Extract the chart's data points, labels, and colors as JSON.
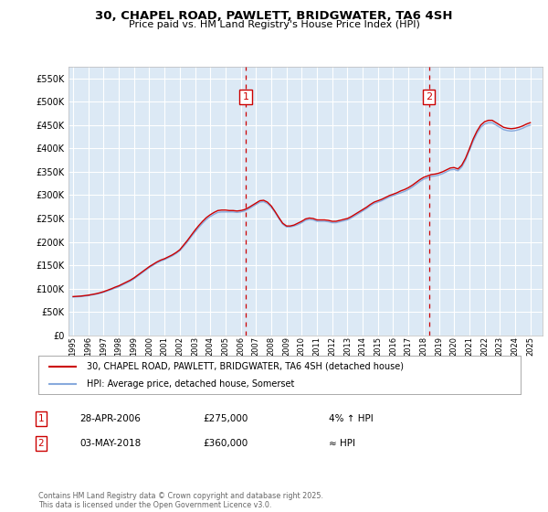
{
  "title_line1": "30, CHAPEL ROAD, PAWLETT, BRIDGWATER, TA6 4SH",
  "title_line2": "Price paid vs. HM Land Registry's House Price Index (HPI)",
  "fig_bg_color": "#ffffff",
  "plot_bg_color": "#dce9f5",
  "ylim": [
    0,
    575000
  ],
  "yticks": [
    0,
    50000,
    100000,
    150000,
    200000,
    250000,
    300000,
    350000,
    400000,
    450000,
    500000,
    550000
  ],
  "ytick_labels": [
    "£0",
    "£50K",
    "£100K",
    "£150K",
    "£200K",
    "£250K",
    "£300K",
    "£350K",
    "£400K",
    "£450K",
    "£500K",
    "£550K"
  ],
  "xmin": 1994.7,
  "xmax": 2025.8,
  "sale1_x": 2006.32,
  "sale1_y": 510000,
  "sale1_label": "1",
  "sale2_x": 2018.34,
  "sale2_y": 510000,
  "sale2_label": "2",
  "red_line_color": "#cc0000",
  "blue_line_color": "#88aadd",
  "grid_color": "#ffffff",
  "dashed_line_color": "#cc0000",
  "legend_label_red": "30, CHAPEL ROAD, PAWLETT, BRIDGWATER, TA6 4SH (detached house)",
  "legend_label_blue": "HPI: Average price, detached house, Somerset",
  "annotation1_date": "28-APR-2006",
  "annotation1_price": "£275,000",
  "annotation1_hpi": "4% ↑ HPI",
  "annotation2_date": "03-MAY-2018",
  "annotation2_price": "£360,000",
  "annotation2_hpi": "≈ HPI",
  "footer": "Contains HM Land Registry data © Crown copyright and database right 2025.\nThis data is licensed under the Open Government Licence v3.0.",
  "hpi_years": [
    1995.0,
    1995.25,
    1995.5,
    1995.75,
    1996.0,
    1996.25,
    1996.5,
    1996.75,
    1997.0,
    1997.25,
    1997.5,
    1997.75,
    1998.0,
    1998.25,
    1998.5,
    1998.75,
    1999.0,
    1999.25,
    1999.5,
    1999.75,
    2000.0,
    2000.25,
    2000.5,
    2000.75,
    2001.0,
    2001.25,
    2001.5,
    2001.75,
    2002.0,
    2002.25,
    2002.5,
    2002.75,
    2003.0,
    2003.25,
    2003.5,
    2003.75,
    2004.0,
    2004.25,
    2004.5,
    2004.75,
    2005.0,
    2005.25,
    2005.5,
    2005.75,
    2006.0,
    2006.25,
    2006.5,
    2006.75,
    2007.0,
    2007.25,
    2007.5,
    2007.75,
    2008.0,
    2008.25,
    2008.5,
    2008.75,
    2009.0,
    2009.25,
    2009.5,
    2009.75,
    2010.0,
    2010.25,
    2010.5,
    2010.75,
    2011.0,
    2011.25,
    2011.5,
    2011.75,
    2012.0,
    2012.25,
    2012.5,
    2012.75,
    2013.0,
    2013.25,
    2013.5,
    2013.75,
    2014.0,
    2014.25,
    2014.5,
    2014.75,
    2015.0,
    2015.25,
    2015.5,
    2015.75,
    2016.0,
    2016.25,
    2016.5,
    2016.75,
    2017.0,
    2017.25,
    2017.5,
    2017.75,
    2018.0,
    2018.25,
    2018.5,
    2018.75,
    2019.0,
    2019.25,
    2019.5,
    2019.75,
    2020.0,
    2020.25,
    2020.5,
    2020.75,
    2021.0,
    2021.25,
    2021.5,
    2021.75,
    2022.0,
    2022.25,
    2022.5,
    2022.75,
    2023.0,
    2023.25,
    2023.5,
    2023.75,
    2024.0,
    2024.25,
    2024.5,
    2024.75,
    2025.0
  ],
  "hpi_values": [
    82000,
    82500,
    83000,
    84000,
    85000,
    86500,
    88000,
    90000,
    92000,
    95000,
    98000,
    101000,
    104000,
    108000,
    112000,
    116000,
    121000,
    127000,
    133000,
    139000,
    145000,
    150000,
    155000,
    159000,
    162000,
    166000,
    170000,
    175000,
    181000,
    190000,
    200000,
    211000,
    221000,
    231000,
    240000,
    248000,
    254000,
    259000,
    263000,
    264000,
    264000,
    264000,
    264000,
    263000,
    264000,
    266000,
    270000,
    275000,
    280000,
    285000,
    286000,
    282000,
    274000,
    263000,
    250000,
    238000,
    232000,
    232000,
    234000,
    237000,
    241000,
    246000,
    248000,
    247000,
    244000,
    244000,
    244000,
    243000,
    241000,
    241000,
    243000,
    245000,
    247000,
    251000,
    256000,
    261000,
    266000,
    271000,
    277000,
    282000,
    285000,
    288000,
    292000,
    296000,
    299000,
    302000,
    305000,
    308000,
    312000,
    317000,
    323000,
    329000,
    334000,
    337000,
    340000,
    341000,
    343000,
    346000,
    350000,
    354000,
    355000,
    352000,
    360000,
    375000,
    395000,
    415000,
    432000,
    445000,
    452000,
    455000,
    455000,
    450000,
    445000,
    440000,
    438000,
    437000,
    438000,
    440000,
    443000,
    447000,
    450000
  ],
  "price_years": [
    1995.0,
    1995.25,
    1995.5,
    1995.75,
    1996.0,
    1996.25,
    1996.5,
    1996.75,
    1997.0,
    1997.25,
    1997.5,
    1997.75,
    1998.0,
    1998.25,
    1998.5,
    1998.75,
    1999.0,
    1999.25,
    1999.5,
    1999.75,
    2000.0,
    2000.25,
    2000.5,
    2000.75,
    2001.0,
    2001.25,
    2001.5,
    2001.75,
    2002.0,
    2002.25,
    2002.5,
    2002.75,
    2003.0,
    2003.25,
    2003.5,
    2003.75,
    2004.0,
    2004.25,
    2004.5,
    2004.75,
    2005.0,
    2005.25,
    2005.5,
    2005.75,
    2006.0,
    2006.25,
    2006.5,
    2006.75,
    2007.0,
    2007.25,
    2007.5,
    2007.75,
    2008.0,
    2008.25,
    2008.5,
    2008.75,
    2009.0,
    2009.25,
    2009.5,
    2009.75,
    2010.0,
    2010.25,
    2010.5,
    2010.75,
    2011.0,
    2011.25,
    2011.5,
    2011.75,
    2012.0,
    2012.25,
    2012.5,
    2012.75,
    2013.0,
    2013.25,
    2013.5,
    2013.75,
    2014.0,
    2014.25,
    2014.5,
    2014.75,
    2015.0,
    2015.25,
    2015.5,
    2015.75,
    2016.0,
    2016.25,
    2016.5,
    2016.75,
    2017.0,
    2017.25,
    2017.5,
    2017.75,
    2018.0,
    2018.25,
    2018.5,
    2018.75,
    2019.0,
    2019.25,
    2019.5,
    2019.75,
    2020.0,
    2020.25,
    2020.5,
    2020.75,
    2021.0,
    2021.25,
    2021.5,
    2021.75,
    2022.0,
    2022.25,
    2022.5,
    2022.75,
    2023.0,
    2023.25,
    2023.5,
    2023.75,
    2024.0,
    2024.25,
    2024.5,
    2024.75,
    2025.0
  ],
  "price_values": [
    83000,
    83500,
    84000,
    85000,
    86000,
    87500,
    89000,
    91000,
    93500,
    96500,
    99500,
    103000,
    106000,
    110000,
    114000,
    118000,
    123000,
    129000,
    135000,
    141000,
    147000,
    152000,
    157000,
    161000,
    164000,
    168000,
    172000,
    177000,
    183000,
    193000,
    203000,
    214000,
    225000,
    235000,
    244000,
    252000,
    258000,
    263000,
    267000,
    268000,
    268000,
    267000,
    267000,
    266000,
    267000,
    269000,
    273000,
    278000,
    283000,
    288000,
    289000,
    285000,
    277000,
    265000,
    252000,
    240000,
    234000,
    234000,
    236000,
    240000,
    244000,
    249000,
    251000,
    250000,
    247000,
    247000,
    247000,
    246000,
    244000,
    244000,
    246000,
    248000,
    250000,
    254000,
    259000,
    264000,
    269000,
    274000,
    280000,
    285000,
    288000,
    291000,
    295000,
    299000,
    302000,
    305000,
    309000,
    312000,
    316000,
    321000,
    327000,
    333000,
    338000,
    341000,
    344000,
    345000,
    347000,
    350000,
    354000,
    358000,
    359000,
    356000,
    364000,
    379000,
    399000,
    420000,
    437000,
    450000,
    457000,
    460000,
    460000,
    455000,
    450000,
    445000,
    443000,
    442000,
    443000,
    445000,
    448000,
    452000,
    455000
  ]
}
